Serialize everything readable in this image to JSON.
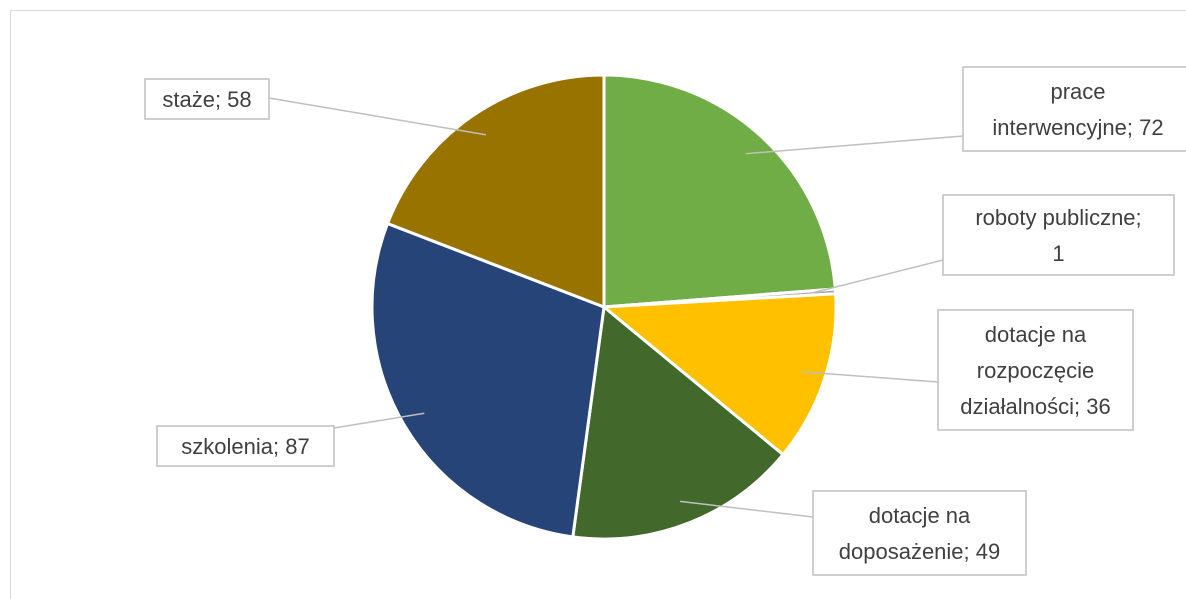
{
  "chart_data": {
    "type": "pie",
    "title": "",
    "slices": [
      {
        "label": "prace interwencyjne",
        "value": 72,
        "color": "#70ad47",
        "label_lines": [
          "prace",
          "interwencyjne; 72"
        ]
      },
      {
        "label": "roboty publiczne",
        "value": 1,
        "color": "#a5a5a5",
        "label_lines": [
          "roboty publiczne;",
          "1"
        ]
      },
      {
        "label": "dotacje na rozpoczęcie działalności",
        "value": 36,
        "color": "#ffc000",
        "label_lines": [
          "dotacje na",
          "rozpoczęcie",
          "działalności; 36"
        ]
      },
      {
        "label": "dotacje na doposażenie",
        "value": 49,
        "color": "#43682b",
        "label_lines": [
          "dotacje na",
          "doposażenie; 49"
        ]
      },
      {
        "label": "szkolenia",
        "value": 87,
        "color": "#264478",
        "label_lines": [
          "szkolenia; 87"
        ]
      },
      {
        "label": "staże",
        "value": 58,
        "color": "#997300",
        "label_lines": [
          "staże; 58"
        ]
      }
    ],
    "legend": "none",
    "data_labels": "outside-with-leader-lines"
  }
}
